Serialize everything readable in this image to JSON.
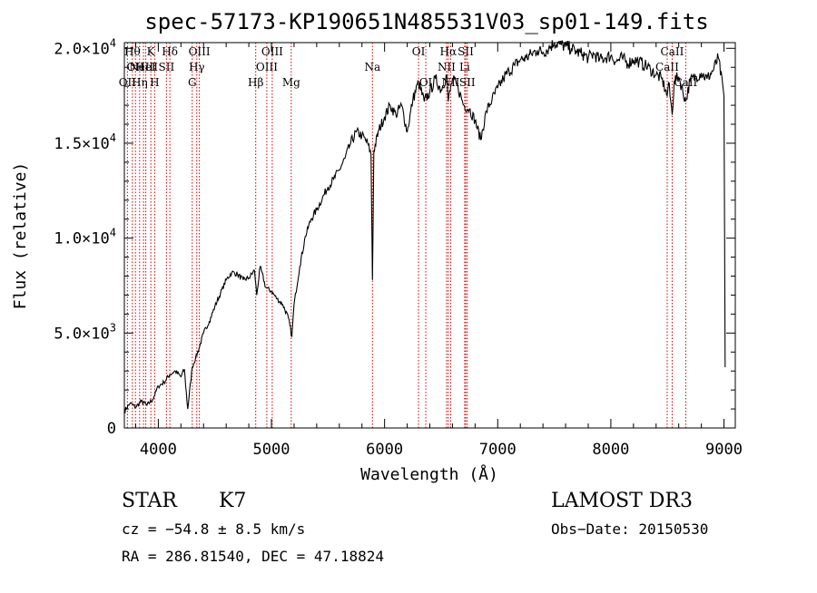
{
  "chart_data": {
    "type": "line",
    "title": "spec-57173-KP190651N485531V03_sp01-149.fits",
    "xlabel": "Wavelength (Å)",
    "ylabel": "Flux (relative)",
    "xlim": [
      3700,
      9100
    ],
    "ylim": [
      0,
      20300
    ],
    "x_ticks": [
      {
        "value": 4000,
        "label": "4000"
      },
      {
        "value": 5000,
        "label": "5000"
      },
      {
        "value": 6000,
        "label": "6000"
      },
      {
        "value": 7000,
        "label": "7000"
      },
      {
        "value": 8000,
        "label": "8000"
      },
      {
        "value": 9000,
        "label": "9000"
      }
    ],
    "y_ticks": [
      {
        "value": 0,
        "mant": "0",
        "exp": ""
      },
      {
        "value": 5000,
        "mant": "5.0×10",
        "exp": "3"
      },
      {
        "value": 10000,
        "mant": "1.0×10",
        "exp": "4"
      },
      {
        "value": 15000,
        "mant": "1.5×10",
        "exp": "4"
      },
      {
        "value": 20000,
        "mant": "2.0×10",
        "exp": "4"
      }
    ],
    "series": [
      {
        "name": "spectrum",
        "x": [
          3700,
          3750,
          3800,
          3850,
          3900,
          3950,
          4000,
          4050,
          4100,
          4150,
          4200,
          4230,
          4260,
          4300,
          4330,
          4360,
          4400,
          4450,
          4500,
          4550,
          4600,
          4650,
          4700,
          4750,
          4800,
          4850,
          4870,
          4900,
          4950,
          5000,
          5050,
          5100,
          5150,
          5180,
          5200,
          5250,
          5300,
          5350,
          5400,
          5450,
          5500,
          5550,
          5600,
          5650,
          5700,
          5750,
          5800,
          5850,
          5880,
          5893,
          5905,
          5950,
          6000,
          6050,
          6100,
          6150,
          6200,
          6250,
          6300,
          6350,
          6400,
          6450,
          6500,
          6550,
          6563,
          6600,
          6650,
          6700,
          6750,
          6800,
          6850,
          6900,
          6950,
          7000,
          7050,
          7100,
          7150,
          7200,
          7250,
          7300,
          7350,
          7400,
          7450,
          7500,
          7550,
          7600,
          7650,
          7700,
          7750,
          7800,
          7850,
          7900,
          7950,
          8000,
          8050,
          8100,
          8150,
          8200,
          8250,
          8300,
          8350,
          8400,
          8450,
          8498,
          8510,
          8542,
          8560,
          8600,
          8662,
          8700,
          8750,
          8800,
          8850,
          8900,
          8950,
          9000,
          9010
        ],
        "y": [
          900,
          1300,
          1100,
          1400,
          1200,
          1500,
          2200,
          2400,
          2800,
          3000,
          2700,
          3100,
          1000,
          3200,
          3700,
          4200,
          5000,
          5600,
          6400,
          7100,
          7800,
          8200,
          8100,
          7800,
          7900,
          8300,
          7000,
          8500,
          7400,
          7200,
          6800,
          6500,
          5800,
          4800,
          6500,
          8500,
          10100,
          11000,
          11500,
          12100,
          12700,
          13100,
          13600,
          14200,
          15000,
          15600,
          15400,
          15000,
          14400,
          7800,
          14600,
          15700,
          16400,
          17000,
          16500,
          17000,
          15600,
          17300,
          18200,
          17200,
          17700,
          18400,
          17800,
          18600,
          17200,
          18400,
          17900,
          17000,
          16800,
          16200,
          15200,
          16700,
          17300,
          17900,
          18400,
          18800,
          19100,
          19400,
          19500,
          19700,
          19900,
          19800,
          20000,
          20300,
          20200,
          20100,
          20000,
          19800,
          19700,
          19500,
          19700,
          19400,
          19500,
          19600,
          19300,
          19500,
          19200,
          19400,
          19300,
          19100,
          18900,
          18600,
          18400,
          17500,
          18200,
          16500,
          18300,
          18500,
          17200,
          18300,
          18500,
          18700,
          18400,
          18800,
          19500,
          17500,
          3200
        ]
      }
    ],
    "spectral_lines": [
      {
        "wl": 3771,
        "label": "Hθ",
        "row": 1
      },
      {
        "wl": 3798,
        "label": "OII",
        "row": 2
      },
      {
        "wl": 3727,
        "label": "OII",
        "row": 3
      },
      {
        "wl": 3835,
        "label": "Hη",
        "row": 3
      },
      {
        "wl": 3869,
        "label": "NeIII",
        "row": 2
      },
      {
        "wl": 3889,
        "label": "HeI",
        "row": 2
      },
      {
        "wl": 3934,
        "label": "K",
        "row": 1
      },
      {
        "wl": 3968,
        "label": "H",
        "row": 3
      },
      {
        "wl": 4072,
        "label": "SII",
        "row": 2
      },
      {
        "wl": 4102,
        "label": "Hδ",
        "row": 1
      },
      {
        "wl": 4300,
        "label": "G",
        "row": 3
      },
      {
        "wl": 4340,
        "label": "Hγ",
        "row": 2
      },
      {
        "wl": 4363,
        "label": "OIII",
        "row": 1
      },
      {
        "wl": 4861,
        "label": "Hβ",
        "row": 3
      },
      {
        "wl": 4959,
        "label": "OIII",
        "row": 2
      },
      {
        "wl": 5007,
        "label": "OIII",
        "row": 1
      },
      {
        "wl": 5175,
        "label": "Mg",
        "row": 3
      },
      {
        "wl": 5893,
        "label": "Na",
        "row": 2
      },
      {
        "wl": 6300,
        "label": "OI",
        "row": 1
      },
      {
        "wl": 6364,
        "label": "OI",
        "row": 3
      },
      {
        "wl": 6548,
        "label": "NII",
        "row": 2
      },
      {
        "wl": 6563,
        "label": "Hα",
        "row": 1
      },
      {
        "wl": 6584,
        "label": "NII",
        "row": 3
      },
      {
        "wl": 6708,
        "label": "Li",
        "row": 2
      },
      {
        "wl": 6717,
        "label": "SII",
        "row": 1
      },
      {
        "wl": 6731,
        "label": "SII",
        "row": 3
      },
      {
        "wl": 8498,
        "label": "CaII",
        "row": 2
      },
      {
        "wl": 8542,
        "label": "CaII",
        "row": 1
      },
      {
        "wl": 8662,
        "label": "CaII",
        "row": 3
      }
    ]
  },
  "info": {
    "class_label": "STAR",
    "subclass": "K7",
    "survey": "LAMOST DR3",
    "cz": "cz = −54.8 ± 8.5 km/s",
    "obs_date": "Obs−Date: 20150530",
    "radec": "RA = 286.81540, DEC =  47.18824"
  },
  "colors": {
    "spectrum": "#000000",
    "line_marker": "#cc0000",
    "axis": "#000000",
    "background": "#ffffff"
  }
}
